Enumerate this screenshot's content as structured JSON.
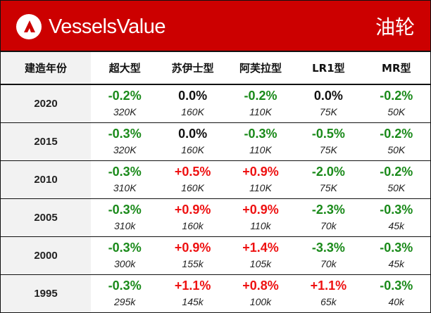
{
  "header": {
    "brand": "VesselsValue",
    "category": "油轮"
  },
  "table": {
    "columns": [
      "建造年份",
      "超大型",
      "苏伊士型",
      "阿芙拉型",
      "LR1型",
      "MR型"
    ],
    "rows": [
      {
        "year": "2020",
        "cells": [
          {
            "change": "-0.2%",
            "value": "320K",
            "trend": "neg"
          },
          {
            "change": "0.0%",
            "value": "160K",
            "trend": "zero"
          },
          {
            "change": "-0.2%",
            "value": "110K",
            "trend": "neg"
          },
          {
            "change": "0.0%",
            "value": "75K",
            "trend": "zero"
          },
          {
            "change": "-0.2%",
            "value": "50K",
            "trend": "neg"
          }
        ]
      },
      {
        "year": "2015",
        "cells": [
          {
            "change": "-0.3%",
            "value": "320K",
            "trend": "neg"
          },
          {
            "change": "0.0%",
            "value": "160K",
            "trend": "zero"
          },
          {
            "change": "-0.3%",
            "value": "110K",
            "trend": "neg"
          },
          {
            "change": "-0.5%",
            "value": "75K",
            "trend": "neg"
          },
          {
            "change": "-0.2%",
            "value": "50K",
            "trend": "neg"
          }
        ]
      },
      {
        "year": "2010",
        "cells": [
          {
            "change": "-0.3%",
            "value": "310K",
            "trend": "neg"
          },
          {
            "change": "+0.5%",
            "value": "160K",
            "trend": "pos"
          },
          {
            "change": "+0.9%",
            "value": "110K",
            "trend": "pos"
          },
          {
            "change": "-2.0%",
            "value": "75K",
            "trend": "neg"
          },
          {
            "change": "-0.2%",
            "value": "50K",
            "trend": "neg"
          }
        ]
      },
      {
        "year": "2005",
        "cells": [
          {
            "change": "-0.3%",
            "value": "310k",
            "trend": "neg"
          },
          {
            "change": "+0.9%",
            "value": "160k",
            "trend": "pos"
          },
          {
            "change": "+0.9%",
            "value": "110k",
            "trend": "pos"
          },
          {
            "change": "-2.3%",
            "value": "70k",
            "trend": "neg"
          },
          {
            "change": "-0.3%",
            "value": "45k",
            "trend": "neg"
          }
        ]
      },
      {
        "year": "2000",
        "cells": [
          {
            "change": "-0.3%",
            "value": "300k",
            "trend": "neg"
          },
          {
            "change": "+0.9%",
            "value": "155k",
            "trend": "pos"
          },
          {
            "change": "+1.4%",
            "value": "105k",
            "trend": "pos"
          },
          {
            "change": "-3.3%",
            "value": "70k",
            "trend": "neg"
          },
          {
            "change": "-0.3%",
            "value": "45k",
            "trend": "neg"
          }
        ]
      },
      {
        "year": "1995",
        "cells": [
          {
            "change": "-0.3%",
            "value": "295k",
            "trend": "neg"
          },
          {
            "change": "+1.1%",
            "value": "145k",
            "trend": "pos"
          },
          {
            "change": "+0.8%",
            "value": "100k",
            "trend": "pos"
          },
          {
            "change": "+1.1%",
            "value": "65k",
            "trend": "pos"
          },
          {
            "change": "-0.3%",
            "value": "40k",
            "trend": "neg"
          }
        ]
      }
    ]
  },
  "colors": {
    "banner": "#cc0000",
    "negative": "#1a8a1a",
    "positive": "#ee1111",
    "neutral": "#111111",
    "year_column": "#f2f2f2"
  },
  "icons": {
    "brand_logo": "vesselsvalue-logo-icon"
  }
}
